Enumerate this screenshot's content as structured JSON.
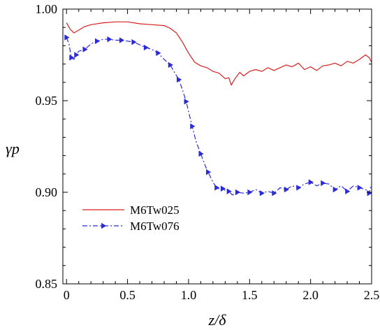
{
  "chart_data": {
    "type": "line",
    "xlabel": "z/δ",
    "ylabel": "γp",
    "xlim": [
      -0.03,
      2.5
    ],
    "ylim": [
      0.85,
      1.0
    ],
    "x_ticks": [
      0,
      0.5,
      1.0,
      1.5,
      2.0,
      2.5
    ],
    "x_tick_labels": [
      "0",
      "0.5",
      "1.0",
      "1.5",
      "2.0",
      "2.5"
    ],
    "y_ticks": [
      0.85,
      0.9,
      0.95,
      1.0
    ],
    "y_tick_labels": [
      "0.85",
      "0.90",
      "0.95",
      "1.00"
    ],
    "grid": false,
    "legend_position": "lower-left",
    "series": [
      {
        "name": "M6Tw025",
        "color": "#d62020",
        "style": "solid",
        "marker": "none",
        "x": [
          0,
          0.03,
          0.06,
          0.1,
          0.15,
          0.2,
          0.3,
          0.4,
          0.5,
          0.6,
          0.7,
          0.8,
          0.85,
          0.9,
          0.95,
          1.0,
          1.05,
          1.1,
          1.15,
          1.2,
          1.25,
          1.3,
          1.33,
          1.35,
          1.38,
          1.42,
          1.45,
          1.5,
          1.55,
          1.6,
          1.65,
          1.7,
          1.75,
          1.8,
          1.85,
          1.9,
          1.95,
          2.0,
          2.05,
          2.1,
          2.15,
          2.2,
          2.25,
          2.3,
          2.35,
          2.4,
          2.45,
          2.48,
          2.5
        ],
        "y": [
          0.9925,
          0.989,
          0.987,
          0.9885,
          0.9905,
          0.9915,
          0.9925,
          0.993,
          0.993,
          0.992,
          0.9915,
          0.991,
          0.9895,
          0.987,
          0.982,
          0.976,
          0.971,
          0.969,
          0.968,
          0.966,
          0.965,
          0.962,
          0.9625,
          0.9585,
          0.962,
          0.9655,
          0.9635,
          0.966,
          0.967,
          0.966,
          0.968,
          0.9665,
          0.968,
          0.9695,
          0.9685,
          0.9705,
          0.967,
          0.9685,
          0.9665,
          0.969,
          0.9695,
          0.9705,
          0.969,
          0.9715,
          0.9705,
          0.9725,
          0.975,
          0.9735,
          0.971
        ]
      },
      {
        "name": "M6Tw076",
        "color": "#2a2ad6",
        "style": "dash-dot",
        "marker": "triangle-right",
        "x": [
          0,
          0.02,
          0.04,
          0.06,
          0.08,
          0.1,
          0.15,
          0.2,
          0.25,
          0.3,
          0.35,
          0.4,
          0.45,
          0.5,
          0.55,
          0.6,
          0.65,
          0.7,
          0.75,
          0.8,
          0.85,
          0.88,
          0.92,
          0.95,
          0.98,
          1.0,
          1.03,
          1.06,
          1.1,
          1.13,
          1.16,
          1.2,
          1.23,
          1.26,
          1.28,
          1.3,
          1.33,
          1.36,
          1.4,
          1.45,
          1.5,
          1.55,
          1.6,
          1.65,
          1.7,
          1.75,
          1.8,
          1.85,
          1.9,
          1.95,
          2.0,
          2.05,
          2.1,
          2.15,
          2.2,
          2.25,
          2.3,
          2.35,
          2.4,
          2.45,
          2.48,
          2.5
        ],
        "y": [
          0.9845,
          0.981,
          0.9735,
          0.9725,
          0.975,
          0.977,
          0.978,
          0.981,
          0.9825,
          0.9835,
          0.9835,
          0.983,
          0.983,
          0.9825,
          0.982,
          0.9805,
          0.979,
          0.978,
          0.976,
          0.9725,
          0.9695,
          0.966,
          0.9615,
          0.956,
          0.9495,
          0.944,
          0.936,
          0.928,
          0.921,
          0.9155,
          0.911,
          0.9055,
          0.9025,
          0.9015,
          0.902,
          0.901,
          0.9005,
          0.8985,
          0.9,
          0.8995,
          0.9,
          0.9015,
          0.8995,
          0.9005,
          0.8995,
          0.9025,
          0.9015,
          0.9035,
          0.9025,
          0.9045,
          0.9055,
          0.9035,
          0.905,
          0.9045,
          0.9015,
          0.9035,
          0.9005,
          0.9035,
          0.9025,
          0.9015,
          0.8995,
          0.9045
        ]
      }
    ]
  }
}
